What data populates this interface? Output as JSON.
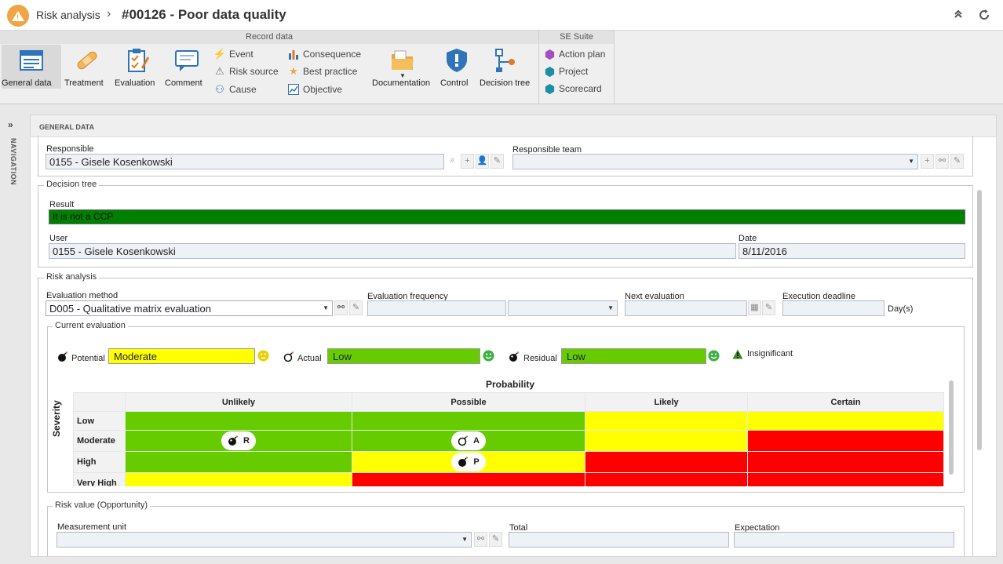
{
  "header": {
    "app": "Risk analysis",
    "sep": "›",
    "title": "#00126 - Poor data quality"
  },
  "ribbon": {
    "group_record": "Record data",
    "group_se": "SE Suite",
    "big": [
      "General data",
      "Treatment",
      "Evaluation",
      "Comment",
      "Documentation",
      "Control",
      "Decision tree"
    ],
    "small_col1": [
      "Event",
      "Risk source",
      "Cause"
    ],
    "small_col2": [
      "Consequence",
      "Best practice",
      "Objective"
    ],
    "small_se": [
      "Action plan",
      "Project",
      "Scorecard"
    ]
  },
  "nav": {
    "label": "NAVIGATION"
  },
  "section": {
    "title": "GENERAL DATA"
  },
  "responsible": {
    "label": "Responsible",
    "value": "0155 - Gisele Kosenkowski",
    "team_label": "Responsible team",
    "team_value": ""
  },
  "decision_tree": {
    "legend": "Decision tree",
    "result_label": "Result",
    "result_value": "It is not a CCP",
    "user_label": "User",
    "user_value": "0155 - Gisele Kosenkowski",
    "date_label": "Date",
    "date_value": "8/11/2016"
  },
  "risk_analysis": {
    "legend": "Risk analysis",
    "method_label": "Evaluation method",
    "method_value": "D005 - Qualitative matrix evaluation",
    "freq_label": "Evaluation frequency",
    "next_label": "Next evaluation",
    "deadline_label": "Execution deadline",
    "deadline_unit": "Day(s)"
  },
  "current_eval": {
    "legend": "Current evaluation",
    "potential_label": "Potential",
    "potential_value": "Moderate",
    "potential_color": "#ffff00",
    "actual_label": "Actual",
    "actual_value": "Low",
    "actual_color": "#66cc00",
    "residual_label": "Residual",
    "residual_value": "Low",
    "residual_color": "#66cc00",
    "insignificant_label": "Insignificant"
  },
  "matrix": {
    "prob_title": "Probability",
    "severity_title": "Severity",
    "cols": [
      "Unlikely",
      "Possible",
      "Likely",
      "Certain"
    ],
    "rows": [
      "Low",
      "Moderate",
      "High",
      "Very High"
    ],
    "colors": [
      [
        "#66cc00",
        "#66cc00",
        "#ffff00",
        "#ffff00"
      ],
      [
        "#66cc00",
        "#66cc00",
        "#ffff00",
        "#ff0000"
      ],
      [
        "#66cc00",
        "#ffff00",
        "#ff0000",
        "#ff0000"
      ],
      [
        "#ffff00",
        "#ff0000",
        "#ff0000",
        "#ff0000"
      ]
    ],
    "markers": {
      "R": "R",
      "A": "A",
      "P": "P"
    }
  },
  "risk_value": {
    "legend": "Risk value (Opportunity)",
    "unit_label": "Measurement unit",
    "total_label": "Total",
    "expectation_label": "Expectation"
  }
}
